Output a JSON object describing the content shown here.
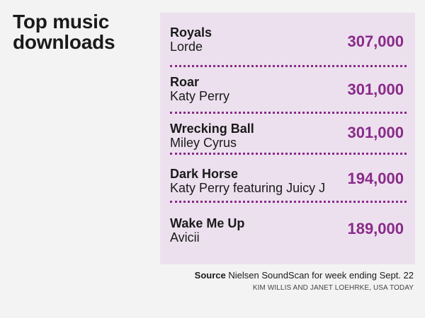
{
  "title": "Top music downloads",
  "rows": [
    {
      "song": "Royals",
      "artist": "Lorde",
      "downloads": "307,000"
    },
    {
      "song": "Roar",
      "artist": "Katy Perry",
      "downloads": "301,000"
    },
    {
      "song": "Wrecking Ball",
      "artist": "Miley Cyrus",
      "downloads": "301,000"
    },
    {
      "song": "Dark Horse",
      "artist": "Katy Perry featuring Juicy J",
      "downloads": "194,000"
    },
    {
      "song": "Wake Me Up",
      "artist": "Avicii",
      "downloads": "189,000"
    }
  ],
  "source": {
    "label": "Source",
    "text": "Nielsen SoundScan for week ending Sept. 22"
  },
  "credit": "KIM WILLIS AND JANET LOEHRKE, USA TODAY",
  "colors": {
    "background": "#f3f3f3",
    "panel": "#ece0ee",
    "accent": "#8a2a8a",
    "text": "#1a1a1a"
  }
}
